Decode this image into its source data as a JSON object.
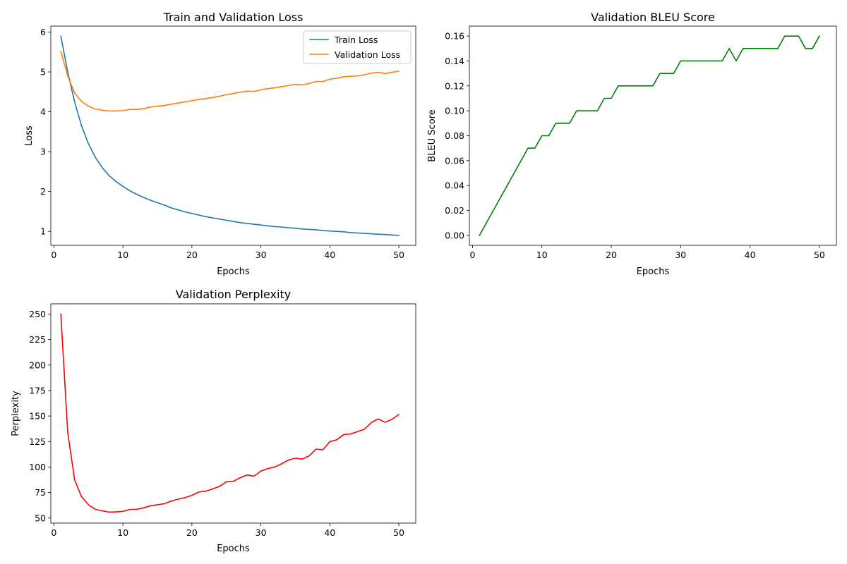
{
  "chart_data": [
    {
      "type": "line",
      "title": "Train and Validation Loss",
      "xlabel": "Epochs",
      "ylabel": "Loss",
      "xlim": [
        -0.45,
        52.45
      ],
      "ylim": [
        0.65,
        6.15
      ],
      "xticks": [
        0,
        10,
        20,
        30,
        40,
        50
      ],
      "yticks": [
        1,
        2,
        3,
        4,
        5,
        6
      ],
      "legend": "top-right",
      "grid": false,
      "x": [
        1,
        2,
        3,
        4,
        5,
        6,
        7,
        8,
        9,
        10,
        11,
        12,
        13,
        14,
        15,
        16,
        17,
        18,
        19,
        20,
        21,
        22,
        23,
        24,
        25,
        26,
        27,
        28,
        29,
        30,
        31,
        32,
        33,
        34,
        35,
        36,
        37,
        38,
        39,
        40,
        41,
        42,
        43,
        44,
        45,
        46,
        47,
        48,
        49,
        50
      ],
      "series": [
        {
          "name": "Train Loss",
          "color": "#1f77b4",
          "values": [
            5.9,
            5.0,
            4.25,
            3.65,
            3.2,
            2.86,
            2.6,
            2.4,
            2.25,
            2.13,
            2.02,
            1.93,
            1.85,
            1.78,
            1.72,
            1.66,
            1.59,
            1.54,
            1.49,
            1.45,
            1.41,
            1.37,
            1.34,
            1.31,
            1.28,
            1.25,
            1.22,
            1.2,
            1.18,
            1.16,
            1.14,
            1.12,
            1.11,
            1.09,
            1.08,
            1.06,
            1.05,
            1.04,
            1.02,
            1.01,
            1.0,
            0.99,
            0.97,
            0.96,
            0.95,
            0.94,
            0.93,
            0.92,
            0.91,
            0.9
          ]
        },
        {
          "name": "Validation Loss",
          "color": "#ff7f0e",
          "values": [
            5.52,
            4.9,
            4.47,
            4.26,
            4.14,
            4.07,
            4.04,
            4.02,
            4.02,
            4.03,
            4.06,
            4.06,
            4.08,
            4.12,
            4.14,
            4.16,
            4.19,
            4.22,
            4.25,
            4.28,
            4.31,
            4.33,
            4.36,
            4.39,
            4.43,
            4.46,
            4.49,
            4.52,
            4.51,
            4.55,
            4.58,
            4.6,
            4.63,
            4.66,
            4.69,
            4.68,
            4.71,
            4.76,
            4.76,
            4.82,
            4.84,
            4.88,
            4.89,
            4.9,
            4.93,
            4.97,
            4.99,
            4.96,
            4.99,
            5.02
          ]
        }
      ]
    },
    {
      "type": "line",
      "title": "Validation BLEU Score",
      "xlabel": "Epochs",
      "ylabel": "BLEU Score",
      "xlim": [
        -0.45,
        52.45
      ],
      "ylim": [
        -0.008,
        0.168
      ],
      "xticks": [
        0,
        10,
        20,
        30,
        40,
        50
      ],
      "yticks": [
        0.0,
        0.02,
        0.04,
        0.06,
        0.08,
        0.1,
        0.12,
        0.14,
        0.16
      ],
      "ytick_labels": [
        "0.00",
        "0.02",
        "0.04",
        "0.06",
        "0.08",
        "0.10",
        "0.12",
        "0.14",
        "0.16"
      ],
      "grid": false,
      "x": [
        1,
        2,
        3,
        4,
        5,
        6,
        7,
        8,
        9,
        10,
        11,
        12,
        13,
        14,
        15,
        16,
        17,
        18,
        19,
        20,
        21,
        22,
        23,
        24,
        25,
        26,
        27,
        28,
        29,
        30,
        31,
        32,
        33,
        34,
        35,
        36,
        37,
        38,
        39,
        40,
        41,
        42,
        43,
        44,
        45,
        46,
        47,
        48,
        49,
        50
      ],
      "series": [
        {
          "color": "#008000",
          "values": [
            0.0,
            0.01,
            0.02,
            0.03,
            0.04,
            0.05,
            0.06,
            0.07,
            0.07,
            0.08,
            0.08,
            0.09,
            0.09,
            0.09,
            0.1,
            0.1,
            0.1,
            0.1,
            0.11,
            0.11,
            0.12,
            0.12,
            0.12,
            0.12,
            0.12,
            0.12,
            0.13,
            0.13,
            0.13,
            0.14,
            0.14,
            0.14,
            0.14,
            0.14,
            0.14,
            0.14,
            0.15,
            0.14,
            0.15,
            0.15,
            0.15,
            0.15,
            0.15,
            0.15,
            0.16,
            0.16,
            0.16,
            0.15,
            0.15,
            0.16
          ]
        }
      ]
    },
    {
      "type": "line",
      "title": "Validation Perplexity",
      "xlabel": "Epochs",
      "ylabel": "Perplexity",
      "xlim": [
        -0.45,
        52.45
      ],
      "ylim": [
        45,
        260
      ],
      "xticks": [
        0,
        10,
        20,
        30,
        40,
        50
      ],
      "yticks": [
        50,
        75,
        100,
        125,
        150,
        175,
        200,
        225,
        250
      ],
      "grid": false,
      "x": [
        1,
        2,
        3,
        4,
        5,
        6,
        7,
        8,
        9,
        10,
        11,
        12,
        13,
        14,
        15,
        16,
        17,
        18,
        19,
        20,
        21,
        22,
        23,
        24,
        25,
        26,
        27,
        28,
        29,
        30,
        31,
        32,
        33,
        34,
        35,
        36,
        37,
        38,
        39,
        40,
        41,
        42,
        43,
        44,
        45,
        46,
        47,
        48,
        49,
        50
      ],
      "series": [
        {
          "color": "#ff0000",
          "values": [
            250,
            134,
            87.5,
            71,
            63,
            58.5,
            57,
            55.8,
            56,
            56.5,
            58.4,
            58.5,
            60,
            62,
            63,
            64,
            66.5,
            68.5,
            70,
            72.2,
            75.5,
            76.3,
            78.5,
            81,
            85.5,
            86,
            89.5,
            92.2,
            91,
            96,
            98.5,
            100,
            103.2,
            106.8,
            108.7,
            107.8,
            111,
            117.5,
            117,
            124.9,
            126.7,
            131.8,
            132.4,
            134.7,
            137,
            143.5,
            147.2,
            143.9,
            146.8,
            151.4
          ]
        }
      ]
    }
  ]
}
